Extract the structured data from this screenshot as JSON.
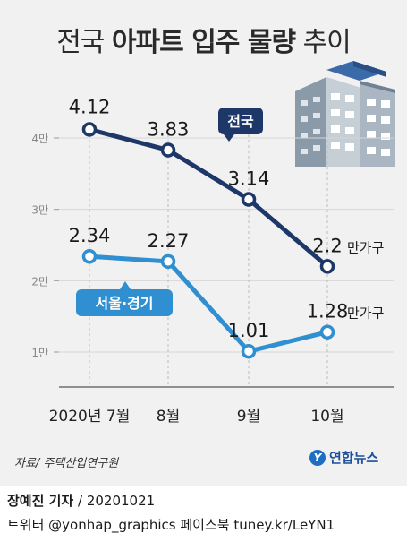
{
  "title": {
    "light": "전국 ",
    "bold": "아파트 입주 물량",
    "light2": " 추이"
  },
  "chart_data": {
    "type": "line",
    "categories": [
      "2020년 7월",
      "8월",
      "9월",
      "10월"
    ],
    "ylabel": "",
    "ylim": [
      0.5,
      4.5
    ],
    "yticks": [
      {
        "value": 4,
        "label": "4만"
      },
      {
        "value": 3,
        "label": "3만"
      },
      {
        "value": 2,
        "label": "2만"
      },
      {
        "value": 1,
        "label": "1만"
      }
    ],
    "unit_suffix": "만가구",
    "series": [
      {
        "name": "전국",
        "values": [
          4.12,
          3.83,
          3.14,
          2.2
        ],
        "labels": [
          "4.12",
          "3.83",
          "3.14",
          "2.2"
        ],
        "color": "#1c3768"
      },
      {
        "name": "서울·경기",
        "values": [
          2.34,
          2.27,
          1.01,
          1.28
        ],
        "labels": [
          "2.34",
          "2.27",
          "1.01",
          "1.28"
        ],
        "color": "#2f8fd0"
      }
    ]
  },
  "source": "자료/ 주택산업연구원",
  "logo": {
    "mark": "Y",
    "text": "연합뉴스"
  },
  "credit": {
    "name": "장예진 기자",
    "date": " / 20201021"
  },
  "social": "트위터 @yonhap_graphics  페이스북 tuney.kr/LeYN1",
  "icon": "apartment-building-icon"
}
